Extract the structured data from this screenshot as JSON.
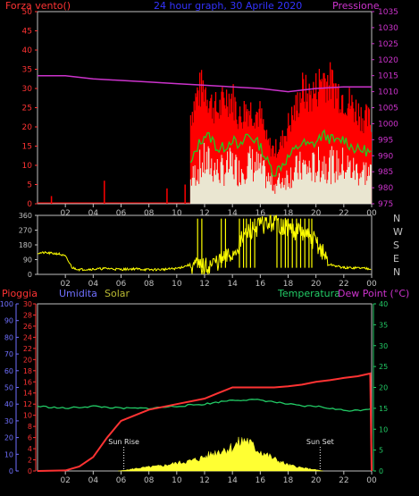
{
  "chart_data": [
    {
      "type": "line",
      "title": "24 hour graph, 30 Aprile 2020",
      "left_axis_label": "Forza vento()",
      "right_axis_label": "Pressione",
      "x_ticks": [
        "02",
        "04",
        "06",
        "08",
        "10",
        "12",
        "14",
        "16",
        "18",
        "20",
        "22",
        "00"
      ],
      "left_ticks": [
        "0",
        "5",
        "10",
        "15",
        "20",
        "25",
        "30",
        "35",
        "40",
        "45",
        "50"
      ],
      "right_ticks": [
        "975",
        "980",
        "985",
        "990",
        "995",
        "1000",
        "1005",
        "1010",
        "1015",
        "1020",
        "1025",
        "1030",
        "1035"
      ],
      "left_range": [
        0,
        50
      ],
      "right_range": [
        975,
        1035
      ],
      "colors": {
        "gust": "#ff0000",
        "speed": "#22cc22",
        "white": "#e8ffe8",
        "pressure": "#cc33cc"
      },
      "pressure": {
        "hours": [
          0,
          2,
          4,
          6,
          8,
          10,
          12,
          14,
          16,
          18,
          20,
          22,
          24
        ],
        "values": [
          1015,
          1015,
          1014,
          1013.5,
          1013,
          1012.5,
          1012,
          1011.5,
          1011,
          1010,
          1011,
          1011.5,
          1011.5
        ]
      },
      "gust_spikes": [
        {
          "h": 1,
          "v": 2
        },
        {
          "h": 4.8,
          "v": 6
        },
        {
          "h": 9.3,
          "v": 4
        },
        {
          "h": 10.6,
          "v": 5
        }
      ],
      "gust": {
        "hours": [
          11,
          11.5,
          12,
          12.5,
          13,
          13.5,
          14,
          14.5,
          15,
          15.5,
          16,
          16.5,
          17,
          17.5,
          18,
          18.5,
          19,
          19.5,
          20,
          20.5,
          21,
          21.5,
          22,
          22.5,
          23,
          23.5,
          24
        ],
        "values": [
          25,
          31,
          33,
          28,
          26,
          30,
          30,
          24,
          27,
          26,
          25,
          17,
          15,
          17,
          22,
          26,
          32,
          30,
          32,
          36,
          34,
          32,
          30,
          28,
          26,
          24,
          23
        ]
      },
      "speed": {
        "hours": [
          11,
          11.5,
          12,
          12.5,
          13,
          13.5,
          14,
          14.5,
          15,
          15.5,
          16,
          16.5,
          17,
          17.5,
          18,
          18.5,
          19,
          19.5,
          20,
          20.5,
          21,
          21.5,
          22,
          22.5,
          23,
          23.5,
          24
        ],
        "values": [
          10,
          15,
          18,
          17,
          14,
          15,
          17,
          14,
          18,
          17,
          15,
          11,
          8,
          10,
          12,
          14,
          16,
          15,
          16,
          18,
          17,
          16,
          17,
          15,
          14,
          14,
          13
        ]
      }
    },
    {
      "type": "line",
      "title": "",
      "right_axis_label": "N W S E N",
      "right_letters": [
        "N",
        "W",
        "S",
        "E",
        "N"
      ],
      "x_ticks": [
        "02",
        "04",
        "06",
        "08",
        "10",
        "12",
        "14",
        "16",
        "18",
        "20",
        "22",
        "00"
      ],
      "left_ticks": [
        "0",
        "90",
        "180",
        "270",
        "360"
      ],
      "left_range": [
        0,
        360
      ],
      "color": "#ffff00",
      "direction": {
        "hours": [
          0,
          0.5,
          1,
          1.5,
          2,
          2.5,
          3,
          4,
          5,
          6,
          7,
          8,
          9,
          10,
          11,
          12,
          13,
          14,
          15,
          16,
          17,
          18,
          19,
          20,
          21,
          22,
          23,
          24
        ],
        "values": [
          130,
          132,
          128,
          126,
          110,
          40,
          30,
          32,
          36,
          30,
          34,
          28,
          30,
          36,
          60,
          40,
          80,
          120,
          250,
          300,
          320,
          280,
          250,
          200,
          60,
          40,
          40,
          35
        ]
      }
    },
    {
      "type": "line",
      "labels": {
        "rain": "Pioggia",
        "humidity": "Umidita",
        "solar": "Solar",
        "temperature": "Temperatura",
        "dewpoint": "Dew Point (°C)"
      },
      "colors": {
        "rain": "#ff3333",
        "humidity": "#7070ff",
        "solar": "#ffff33",
        "temperature": "#22cc66",
        "dewpoint": "#cc33cc"
      },
      "x_ticks": [
        "02",
        "04",
        "06",
        "08",
        "10",
        "12",
        "14",
        "16",
        "18",
        "20",
        "22",
        "00"
      ],
      "humidity_ticks": [
        "0",
        "10",
        "20",
        "30",
        "40",
        "50",
        "60",
        "70",
        "80",
        "90",
        "100"
      ],
      "rain_ticks": [
        "0",
        "2",
        "4",
        "6",
        "8",
        "10",
        "12",
        "14",
        "16",
        "18",
        "20",
        "22",
        "24",
        "26",
        "28",
        "30"
      ],
      "temp_ticks": [
        "0",
        "5",
        "10",
        "15",
        "20",
        "25",
        "30",
        "35",
        "40"
      ],
      "rain_range": [
        0,
        30
      ],
      "temp_range": [
        0,
        40
      ],
      "annotations": [
        "Sun Rise",
        "Sun Set"
      ],
      "sun_rise_hour": 6.2,
      "sun_set_hour": 20.3,
      "rain": {
        "hours": [
          0,
          2,
          3,
          4,
          5,
          6,
          7,
          8,
          10,
          12,
          13,
          14,
          15,
          16,
          17,
          18,
          19,
          20,
          21,
          22,
          23,
          23.9,
          24
        ],
        "values": [
          0,
          0.1,
          0.8,
          2.5,
          6,
          9,
          10,
          11,
          12,
          13,
          14,
          15,
          15,
          15,
          15,
          15.2,
          15.5,
          16,
          16.3,
          16.7,
          17,
          17.5,
          0
        ]
      },
      "temperature": {
        "hours": [
          0,
          2,
          4,
          6,
          8,
          10,
          12,
          13,
          14,
          15,
          16,
          17,
          18,
          19,
          20,
          21,
          22,
          23,
          24
        ],
        "values": [
          15.5,
          15,
          15.5,
          15,
          15,
          15.5,
          16,
          16.5,
          17,
          17,
          17,
          16.5,
          16,
          15.5,
          15.5,
          15,
          14.5,
          14.5,
          15
        ]
      },
      "solar": {
        "hours": [
          5.8,
          6.5,
          7,
          8,
          9,
          10,
          11,
          12,
          13,
          14,
          14.5,
          15,
          15.5,
          16,
          17,
          18,
          19,
          20,
          20.5
        ],
        "values": [
          0,
          0.3,
          0.6,
          1,
          1.3,
          2,
          2.5,
          3.5,
          5,
          6,
          7,
          8,
          6,
          5,
          3,
          1.5,
          0.8,
          0.3,
          0
        ]
      }
    }
  ]
}
